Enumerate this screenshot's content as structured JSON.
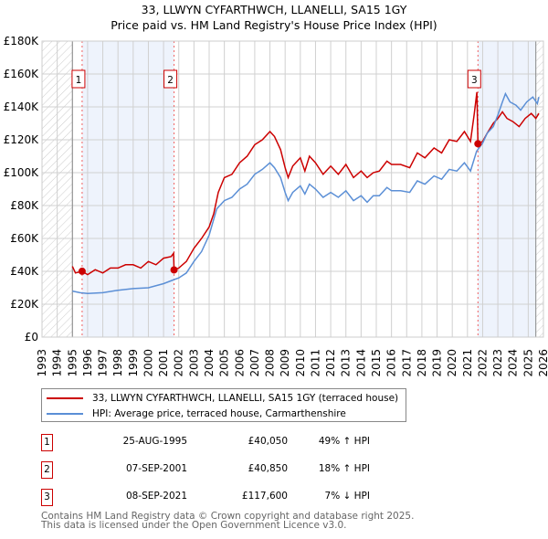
{
  "title_line1": "33, LLWYN CYFARTHWCH, LLANELLI, SA15 1GY",
  "title_line2": "Price paid vs. HM Land Registry's House Price Index (HPI)",
  "chart_data": {
    "type": "line",
    "xlim": [
      1993,
      2026
    ],
    "ylim": [
      0,
      180000
    ],
    "x_ticks": [
      "1993",
      "1994",
      "1995",
      "1996",
      "1997",
      "1998",
      "1999",
      "2000",
      "2001",
      "2002",
      "2003",
      "2004",
      "2005",
      "2006",
      "2007",
      "2008",
      "2009",
      "2010",
      "2011",
      "2012",
      "2013",
      "2014",
      "2015",
      "2016",
      "2017",
      "2018",
      "2019",
      "2020",
      "2021",
      "2022",
      "2023",
      "2024",
      "2025",
      "2026"
    ],
    "y_ticks": [
      {
        "v": 0,
        "label": "£0"
      },
      {
        "v": 20000,
        "label": "£20K"
      },
      {
        "v": 40000,
        "label": "£40K"
      },
      {
        "v": 60000,
        "label": "£60K"
      },
      {
        "v": 80000,
        "label": "£80K"
      },
      {
        "v": 100000,
        "label": "£100K"
      },
      {
        "v": 120000,
        "label": "£120K"
      },
      {
        "v": 140000,
        "label": "£140K"
      },
      {
        "v": 160000,
        "label": "£160K"
      },
      {
        "v": 180000,
        "label": "£180K"
      }
    ],
    "grid": true,
    "series": [
      {
        "name": "33, LLWYN CYFARTHWCH, LLANELLI, SA15 1GY (terraced house)",
        "color": "#cc0000",
        "x": [
          1995,
          1995.2,
          1995.64,
          1996,
          1996.5,
          1997,
          1997.5,
          1998,
          1998.5,
          1999,
          1999.5,
          2000,
          2000.5,
          2001,
          2001.5,
          2001.66,
          2001.69,
          2002,
          2002.5,
          2003,
          2003.5,
          2004,
          2004.3,
          2004.6,
          2005,
          2005.5,
          2006,
          2006.5,
          2007,
          2007.5,
          2008,
          2008.3,
          2008.7,
          2009,
          2009.2,
          2009.5,
          2010,
          2010.3,
          2010.6,
          2011,
          2011.5,
          2012,
          2012.5,
          2013,
          2013.5,
          2014,
          2014.4,
          2014.8,
          2015.2,
          2015.7,
          2016,
          2016.6,
          2017.2,
          2017.7,
          2018.2,
          2018.8,
          2019.3,
          2019.8,
          2020.3,
          2020.8,
          2021.2,
          2021.45,
          2021.62,
          2021.69,
          2022,
          2022.3,
          2022.7,
          2023,
          2023.3,
          2023.6,
          2024,
          2024.4,
          2024.8,
          2025.2,
          2025.5,
          2025.7
        ],
        "y": [
          43000,
          39000,
          40050,
          38000,
          41000,
          39000,
          42000,
          42000,
          44000,
          44000,
          42000,
          46000,
          44000,
          48000,
          49000,
          51000,
          40850,
          42000,
          46000,
          54000,
          60000,
          67000,
          75000,
          88000,
          97000,
          99000,
          106000,
          110000,
          117000,
          120000,
          125000,
          122000,
          114000,
          103000,
          97000,
          104000,
          109000,
          101000,
          110000,
          106000,
          99000,
          104000,
          99000,
          105000,
          97000,
          101000,
          97000,
          100000,
          101000,
          107000,
          105000,
          105000,
          103000,
          112000,
          109000,
          115000,
          112000,
          120000,
          119000,
          125000,
          119000,
          136000,
          149000,
          117600,
          119000,
          124000,
          130000,
          133000,
          137000,
          133000,
          131000,
          128000,
          133000,
          136000,
          133000,
          136000
        ]
      },
      {
        "name": "HPI: Average price, terraced house, Carmarthenshire",
        "color": "#5b8fd6",
        "x": [
          1995,
          1995.5,
          1996,
          1997,
          1998,
          1999,
          2000,
          2001,
          2001.7,
          2002,
          2002.5,
          2003,
          2003.5,
          2004,
          2004.5,
          2005,
          2005.5,
          2006,
          2006.5,
          2007,
          2007.5,
          2008,
          2008.3,
          2008.7,
          2009,
          2009.2,
          2009.5,
          2010,
          2010.3,
          2010.6,
          2011,
          2011.5,
          2012,
          2012.5,
          2013,
          2013.5,
          2014,
          2014.4,
          2014.8,
          2015.2,
          2015.7,
          2016,
          2016.6,
          2017.2,
          2017.7,
          2018.2,
          2018.8,
          2019.3,
          2019.8,
          2020.3,
          2020.8,
          2021.2,
          2021.6,
          2022,
          2022.3,
          2022.7,
          2023,
          2023.3,
          2023.5,
          2023.8,
          2024.2,
          2024.5,
          2024.9,
          2025.3,
          2025.6,
          2025.7
        ],
        "y": [
          28000,
          27000,
          26500,
          27000,
          28500,
          29500,
          30000,
          32500,
          35000,
          36000,
          39000,
          46000,
          52000,
          62000,
          78000,
          83000,
          85000,
          90000,
          93000,
          99000,
          102000,
          106000,
          103000,
          97000,
          88000,
          83000,
          88000,
          92000,
          87000,
          93000,
          90000,
          85000,
          88000,
          85000,
          89000,
          83000,
          86000,
          82000,
          86000,
          86000,
          91000,
          89000,
          89000,
          88000,
          95000,
          93000,
          98000,
          96000,
          102000,
          101000,
          106000,
          101000,
          113000,
          118000,
          124000,
          128000,
          135000,
          143000,
          148000,
          143000,
          141000,
          138000,
          143000,
          146000,
          142000,
          146000
        ]
      }
    ],
    "sales": [
      {
        "id": "1",
        "x": 1995.64,
        "y": 40050,
        "date": "25-AUG-1995",
        "price": "£40,050",
        "hpi": "49% ↑ HPI"
      },
      {
        "id": "2",
        "x": 2001.69,
        "y": 40850,
        "date": "07-SEP-2001",
        "price": "£40,850",
        "hpi": "18% ↑ HPI"
      },
      {
        "id": "3",
        "x": 2021.69,
        "y": 117600,
        "date": "08-SEP-2021",
        "price": "£117,600",
        "hpi": "7% ↓ HPI"
      }
    ],
    "hatched": [
      [
        1993,
        1995
      ],
      [
        2025.5,
        2026
      ]
    ],
    "shaded": [
      [
        1995.64,
        2001.69
      ],
      [
        2021.69,
        2025.5
      ]
    ]
  },
  "legend": {
    "red": "33, LLWYN CYFARTHWCH, LLANELLI, SA15 1GY (terraced house)",
    "blue": "HPI: Average price, terraced house, Carmarthenshire"
  },
  "footer": {
    "line1": "Contains HM Land Registry data © Crown copyright and database right 2025.",
    "line2": "This data is licensed under the Open Government Licence v3.0."
  }
}
